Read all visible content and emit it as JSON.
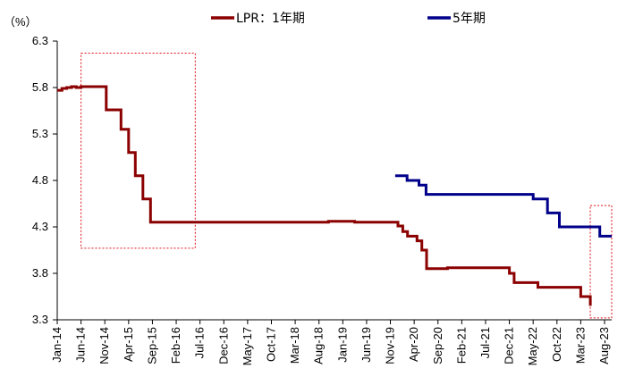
{
  "chart_data": {
    "type": "line",
    "title": "",
    "ylabel": "（%）",
    "ylim": [
      3.3,
      6.3
    ],
    "yticks": [
      "6.3",
      "5.8",
      "5.3",
      "4.8",
      "4.3",
      "3.8",
      "3.3"
    ],
    "xlabels": [
      "Jan-14",
      "Jun-14",
      "Nov-14",
      "Apr-15",
      "Sep-15",
      "Feb-16",
      "Jul-16",
      "Dec-16",
      "May-17",
      "Oct-17",
      "Mar-18",
      "Aug-18",
      "Jan-19",
      "Jun-19",
      "Nov-19",
      "Apr-20",
      "Sep-20",
      "Feb-21",
      "Jul-21",
      "Dec-21",
      "May-22",
      "Oct-22",
      "Mar-23",
      "Aug-23"
    ],
    "x_range_months": [
      0,
      116.5
    ],
    "series": [
      {
        "name": "LPR：1年期",
        "color": "#8B0000",
        "points": [
          [
            0,
            5.77
          ],
          [
            1,
            5.77
          ],
          [
            1,
            5.79
          ],
          [
            2,
            5.79
          ],
          [
            2,
            5.8
          ],
          [
            3,
            5.8
          ],
          [
            3,
            5.81
          ],
          [
            4,
            5.81
          ],
          [
            4,
            5.8
          ],
          [
            5,
            5.8
          ],
          [
            5,
            5.81
          ],
          [
            10.3,
            5.81
          ],
          [
            10.3,
            5.56
          ],
          [
            13.4,
            5.56
          ],
          [
            13.4,
            5.35
          ],
          [
            15,
            5.35
          ],
          [
            15,
            5.1
          ],
          [
            16.4,
            5.1
          ],
          [
            16.4,
            4.85
          ],
          [
            18,
            4.85
          ],
          [
            18,
            4.6
          ],
          [
            19.6,
            4.6
          ],
          [
            19.6,
            4.35
          ],
          [
            57,
            4.35
          ],
          [
            57,
            4.36
          ],
          [
            62.5,
            4.36
          ],
          [
            62.5,
            4.35
          ],
          [
            71.6,
            4.35
          ],
          [
            71.6,
            4.31
          ],
          [
            72.6,
            4.31
          ],
          [
            72.6,
            4.25
          ],
          [
            73.6,
            4.25
          ],
          [
            73.6,
            4.2
          ],
          [
            75.6,
            4.2
          ],
          [
            75.6,
            4.15
          ],
          [
            76.6,
            4.15
          ],
          [
            76.6,
            4.05
          ],
          [
            77.6,
            4.05
          ],
          [
            77.6,
            3.85
          ],
          [
            82,
            3.85
          ],
          [
            82,
            3.86
          ],
          [
            95,
            3.86
          ],
          [
            95,
            3.8
          ],
          [
            96,
            3.8
          ],
          [
            96,
            3.7
          ],
          [
            101,
            3.7
          ],
          [
            101,
            3.65
          ],
          [
            110,
            3.65
          ],
          [
            110,
            3.55
          ],
          [
            112,
            3.55
          ],
          [
            112,
            3.45
          ]
        ]
      },
      {
        "name": "5年期",
        "color": "#00008B",
        "points": [
          [
            71,
            4.85
          ],
          [
            73.5,
            4.85
          ],
          [
            73.5,
            4.8
          ],
          [
            76,
            4.8
          ],
          [
            76,
            4.75
          ],
          [
            77.5,
            4.75
          ],
          [
            77.5,
            4.65
          ],
          [
            100,
            4.65
          ],
          [
            100,
            4.6
          ],
          [
            103,
            4.6
          ],
          [
            103,
            4.45
          ],
          [
            105.5,
            4.45
          ],
          [
            105.5,
            4.3
          ],
          [
            114,
            4.3
          ],
          [
            114,
            4.2
          ],
          [
            116.5,
            4.2
          ]
        ]
      }
    ],
    "annotations": [
      {
        "type": "dashed-box",
        "x_range": [
          5,
          29
        ],
        "y_range": [
          4.07,
          6.17
        ]
      },
      {
        "type": "dashed-box",
        "x_range": [
          112,
          116.5
        ],
        "y_range": [
          3.32,
          4.53
        ]
      }
    ]
  }
}
